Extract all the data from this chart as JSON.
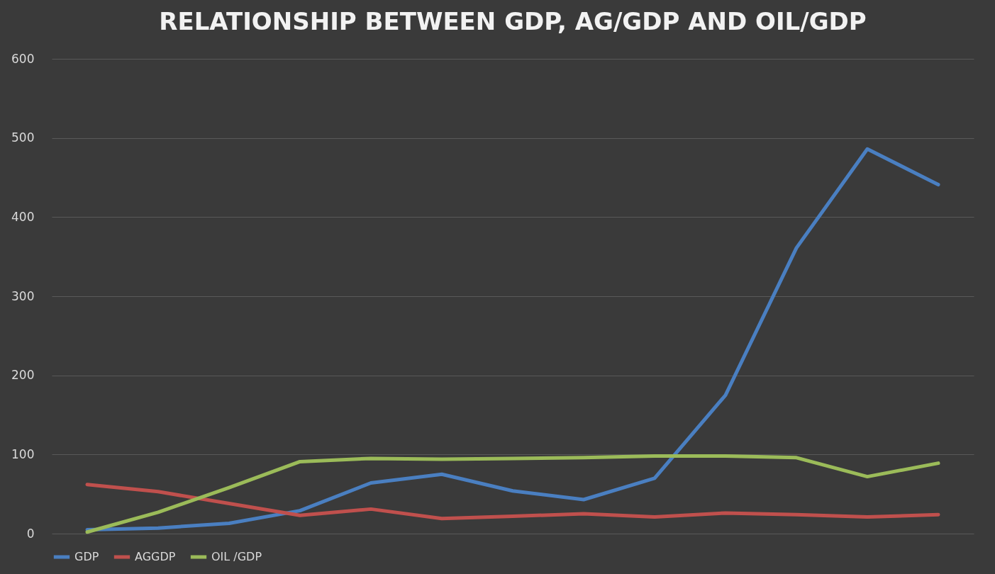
{
  "chart_data": {
    "type": "line",
    "title": "RELATIONSHIP BETWEEN GDP, AG/GDP AND OIL/GDP",
    "categories": [
      null,
      null,
      null,
      null,
      null,
      null,
      null,
      null,
      null,
      null,
      null,
      null,
      null
    ],
    "series": [
      {
        "name": "GDP",
        "color": "#4a7fc1",
        "values": [
          5,
          7,
          13,
          29,
          64,
          75,
          54,
          43,
          70,
          175,
          361,
          486,
          441
        ]
      },
      {
        "name": "AGGDP",
        "color": "#c0504d",
        "values": [
          62,
          53,
          38,
          23,
          31,
          19,
          22,
          25,
          21,
          26,
          24,
          21,
          24
        ]
      },
      {
        "name": "OIL /GDP",
        "color": "#9bbb59",
        "values": [
          2,
          27,
          58,
          91,
          95,
          94,
          95,
          96,
          98,
          98,
          96,
          72,
          89
        ]
      }
    ],
    "ylim": [
      0,
      600
    ],
    "yticks": [
      0,
      100,
      200,
      300,
      400,
      500,
      600
    ],
    "grid": "y",
    "legend": "bottom",
    "tick_labels": "y",
    "marker": "none",
    "line_style": "solid"
  }
}
